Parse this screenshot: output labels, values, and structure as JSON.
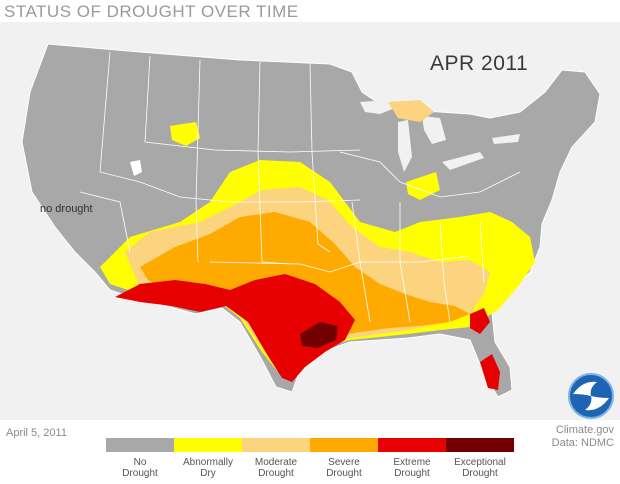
{
  "header": {
    "title": "STATUS OF DROUGHT OVER TIME"
  },
  "map": {
    "date_label": "APR 2011",
    "region_label": "no drought",
    "background_color": "#f1f1f1",
    "land_color": "#a8a8a8",
    "state_border_color": "#ffffff"
  },
  "footer": {
    "date": "April 5, 2011",
    "credit_line1": "Climate.gov",
    "credit_line2": "Data: NDMC",
    "logo_icon": "noaa-logo-icon"
  },
  "legend": {
    "items": [
      {
        "line1": "No",
        "line2": "Drought",
        "color": "#a8a8a8"
      },
      {
        "line1": "Abnormally",
        "line2": "Dry",
        "color": "#ffff00"
      },
      {
        "line1": "Moderate",
        "line2": "Drought",
        "color": "#fcd37f"
      },
      {
        "line1": "Severe",
        "line2": "Drought",
        "color": "#ffaa00"
      },
      {
        "line1": "Extreme",
        "line2": "Drought",
        "color": "#e60000"
      },
      {
        "line1": "Exceptional",
        "line2": "Drought",
        "color": "#730000"
      }
    ]
  }
}
